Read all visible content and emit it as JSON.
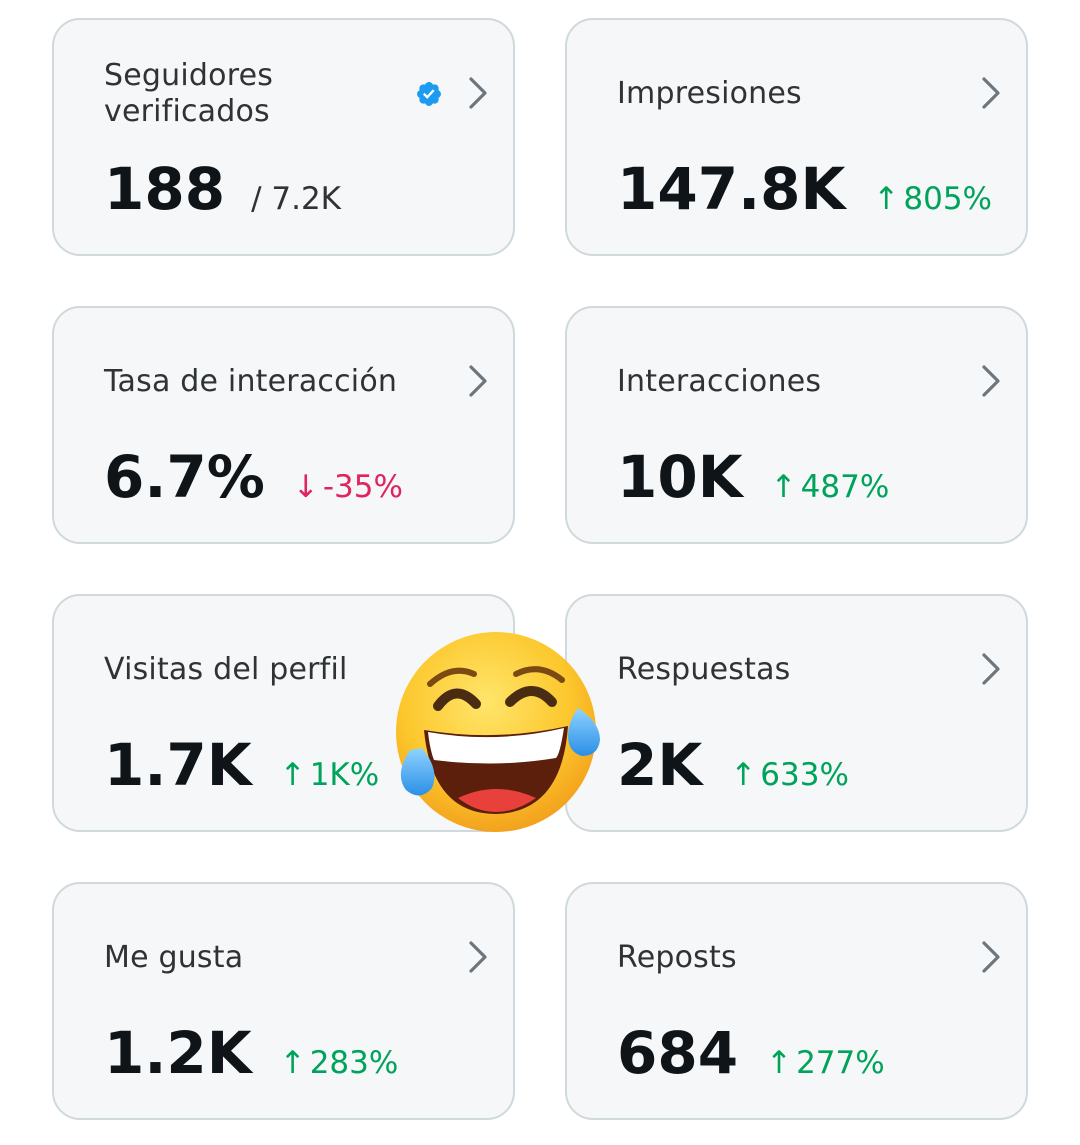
{
  "cards": [
    {
      "title": "Seguidores\nverificados",
      "value": "188",
      "sub": "/ 7.2K",
      "icon": "verified-badge-icon"
    },
    {
      "title": "Impresiones",
      "value": "147.8K",
      "change": {
        "arrow": "↑",
        "text": "805%",
        "direction": "up"
      }
    },
    {
      "title": "Tasa de interacción",
      "value": "6.7%",
      "change": {
        "arrow": "↓",
        "text": "-35%",
        "direction": "down"
      }
    },
    {
      "title": "Interacciones",
      "value": "10K",
      "change": {
        "arrow": "↑",
        "text": "487%",
        "direction": "up"
      }
    },
    {
      "title": "Visitas del perfil",
      "value": "1.7K",
      "change": {
        "arrow": "↑",
        "text": "1K%",
        "direction": "up"
      }
    },
    {
      "title": "Respuestas",
      "value": "2K",
      "change": {
        "arrow": "↑",
        "text": "633%",
        "direction": "up"
      }
    },
    {
      "title": "Me gusta",
      "value": "1.2K",
      "change": {
        "arrow": "↑",
        "text": "283%",
        "direction": "up"
      }
    },
    {
      "title": "Reposts",
      "value": "684",
      "change": {
        "arrow": "↑",
        "text": "277%",
        "direction": "up"
      }
    }
  ],
  "colors": {
    "up": "#00a35a",
    "down": "#e0245e",
    "verified": "#1d9bf0",
    "card_bg": "#f5f7f8",
    "card_border": "#cfd9de"
  },
  "overlay": {
    "icon": "face-with-tears-of-joy-emoji"
  }
}
